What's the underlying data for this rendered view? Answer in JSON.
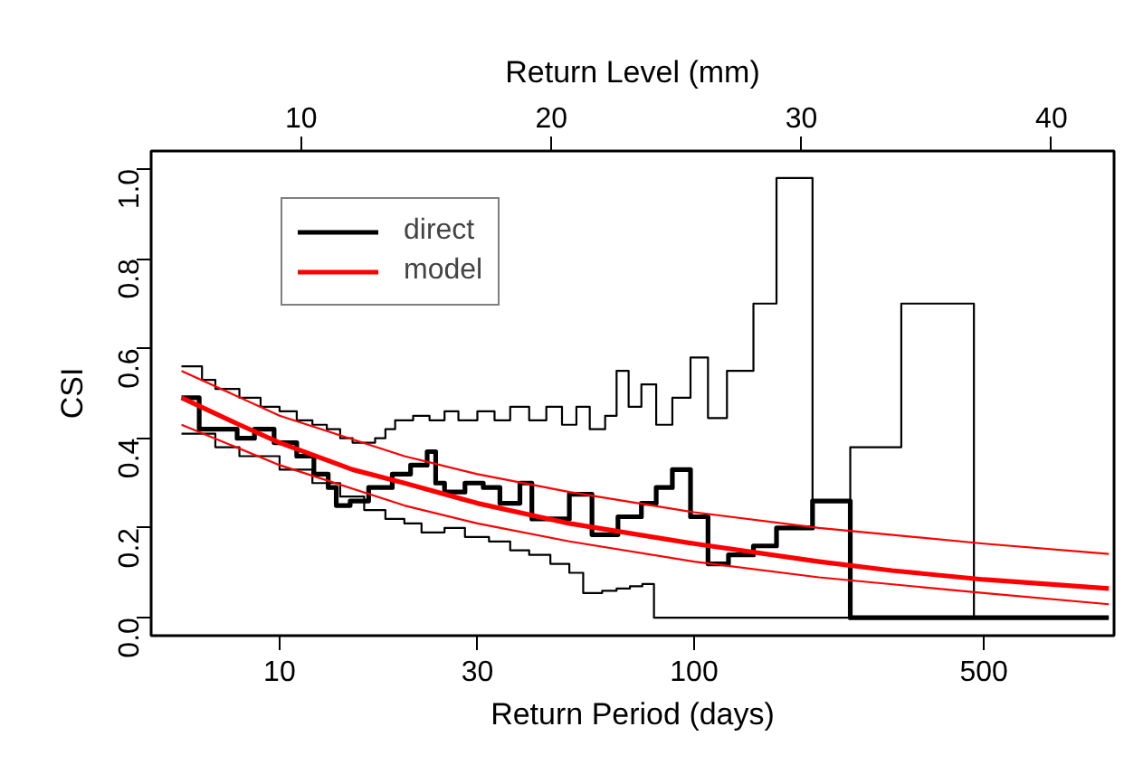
{
  "chart_data": {
    "type": "line",
    "xlabel": "Return Period (days)",
    "ylabel": "CSI",
    "x2label": "Return Level (mm)",
    "log": "x",
    "xlim": [
      4.9,
      1030
    ],
    "xticks": [
      10,
      30,
      100,
      500
    ],
    "x2lim": [
      4.0,
      42.5
    ],
    "x2ticks": [
      10,
      20,
      30,
      40
    ],
    "ylim": [
      -0.04,
      1.04
    ],
    "yticks": [
      {
        "value": 0,
        "label": "0.0"
      },
      0.2,
      0.4,
      0.6,
      0.8,
      {
        "value": 1,
        "label": "1.0"
      }
    ],
    "grid": false,
    "legend": "top left",
    "marker": "none",
    "line_style": "solid",
    "series": [
      {
        "name": "direct",
        "type": "step",
        "color": "#000000",
        "x": [
          5.8,
          6.4,
          7.5,
          7.9,
          8.7,
          9.7,
          11,
          12.1,
          13.1,
          13.7,
          14.8,
          16.4,
          18.7,
          20.7,
          22.7,
          23.8,
          25,
          28,
          31,
          34,
          38,
          40.6,
          50,
          56.7,
          65.5,
          74.6,
          81,
          88.6,
          98,
          108,
          121,
          139,
          158,
          193,
          238,
          1000
        ],
        "values": [
          0.49,
          0.42,
          0.42,
          0.4,
          0.42,
          0.39,
          0.36,
          0.32,
          0.29,
          0.25,
          0.26,
          0.29,
          0.32,
          0.34,
          0.37,
          0.3,
          0.28,
          0.3,
          0.29,
          0.255,
          0.3,
          0.22,
          0.275,
          0.185,
          0.225,
          0.255,
          0.29,
          0.33,
          0.225,
          0.12,
          0.14,
          0.16,
          0.2,
          0.26,
          0,
          0
        ]
      },
      {
        "type": "step",
        "color": "#000000",
        "x": [
          5.8,
          6.5,
          7,
          8,
          9,
          10,
          11,
          12,
          13,
          14,
          15,
          17,
          18,
          19,
          21,
          23,
          25,
          27,
          30,
          33,
          36,
          40,
          44,
          48,
          52,
          56,
          61,
          65,
          69.5,
          74.6,
          81,
          88.6,
          98,
          108,
          120,
          139,
          158,
          193,
          238,
          316,
          473,
          1000
        ],
        "values": [
          0.56,
          0.53,
          0.51,
          0.49,
          0.47,
          0.46,
          0.44,
          0.43,
          0.42,
          0.4,
          0.39,
          0.4,
          0.42,
          0.44,
          0.45,
          0.44,
          0.46,
          0.44,
          0.46,
          0.44,
          0.47,
          0.44,
          0.47,
          0.43,
          0.47,
          0.42,
          0.45,
          0.55,
          0.47,
          0.52,
          0.43,
          0.49,
          0.58,
          0.445,
          0.55,
          0.7,
          0.98,
          0.26,
          0.38,
          0.7,
          0,
          0
        ]
      },
      {
        "type": "step",
        "color": "#000000",
        "x": [
          5.8,
          7,
          8,
          10,
          12,
          14,
          16,
          18,
          20,
          22,
          25,
          28,
          32,
          36,
          40,
          45,
          50,
          54,
          60,
          65,
          70,
          75,
          80,
          1000
        ],
        "values": [
          0.41,
          0.38,
          0.36,
          0.33,
          0.3,
          0.27,
          0.24,
          0.22,
          0.21,
          0.19,
          0.2,
          0.18,
          0.17,
          0.15,
          0.14,
          0.12,
          0.1,
          0.055,
          0.06,
          0.065,
          0.07,
          0.075,
          0,
          0
        ]
      },
      {
        "name": "model",
        "color": "#ff0000",
        "x": [
          5.8,
          8,
          10,
          15,
          20,
          30,
          50,
          100,
          200,
          300,
          500,
          1000
        ],
        "values": [
          0.49,
          0.43,
          0.39,
          0.33,
          0.3,
          0.255,
          0.21,
          0.165,
          0.125,
          0.105,
          0.085,
          0.065
        ]
      },
      {
        "color": "#ff0000",
        "x": [
          5.8,
          10,
          20,
          30,
          50,
          100,
          200,
          500,
          1000
        ],
        "values": [
          0.55,
          0.45,
          0.36,
          0.32,
          0.28,
          0.235,
          0.2,
          0.165,
          0.142
        ]
      },
      {
        "color": "#ff0000",
        "x": [
          5.8,
          10,
          20,
          30,
          50,
          100,
          200,
          500,
          1000
        ],
        "values": [
          0.43,
          0.34,
          0.25,
          0.21,
          0.17,
          0.125,
          0.09,
          0.055,
          0.03
        ]
      }
    ]
  }
}
